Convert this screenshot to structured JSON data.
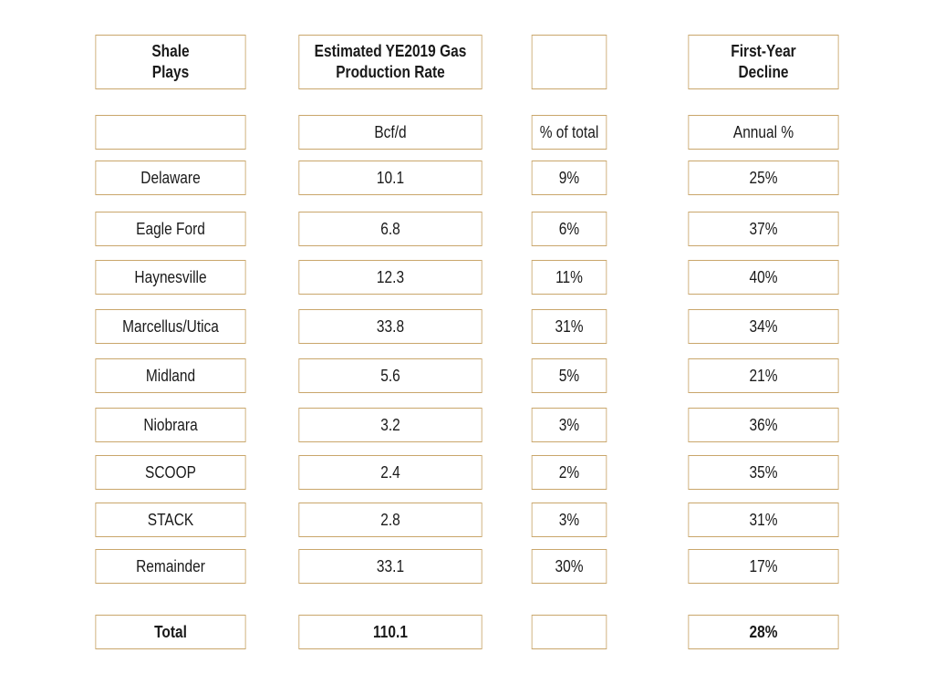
{
  "chart_data": {
    "type": "table",
    "columns": [
      {
        "header": "Shale\nPlays",
        "unit": ""
      },
      {
        "header": "Estimated YE2019 Gas\nProduction Rate",
        "unit": "Bcf/d"
      },
      {
        "header": "",
        "unit": "% of total"
      },
      {
        "header": "First-Year\nDecline",
        "unit": "Annual %"
      }
    ],
    "rows": [
      [
        "Delaware",
        "10.1",
        "9%",
        "25%"
      ],
      [
        "Eagle Ford",
        "6.8",
        "6%",
        "37%"
      ],
      [
        "Haynesville",
        "12.3",
        "11%",
        "40%"
      ],
      [
        "Marcellus/Utica",
        "33.8",
        "31%",
        "34%"
      ],
      [
        "Midland",
        "5.6",
        "5%",
        "21%"
      ],
      [
        "Niobrara",
        "3.2",
        "3%",
        "36%"
      ],
      [
        "SCOOP",
        "2.4",
        "2%",
        "35%"
      ],
      [
        "STACK",
        "2.8",
        "3%",
        "31%"
      ],
      [
        "Remainder",
        "33.1",
        "30%",
        "17%"
      ]
    ],
    "total": [
      "Total",
      "110.1",
      "",
      "28%"
    ]
  },
  "colors": {
    "border": "#c9a66b",
    "text": "#1a1a1a",
    "background": "#ffffff"
  }
}
